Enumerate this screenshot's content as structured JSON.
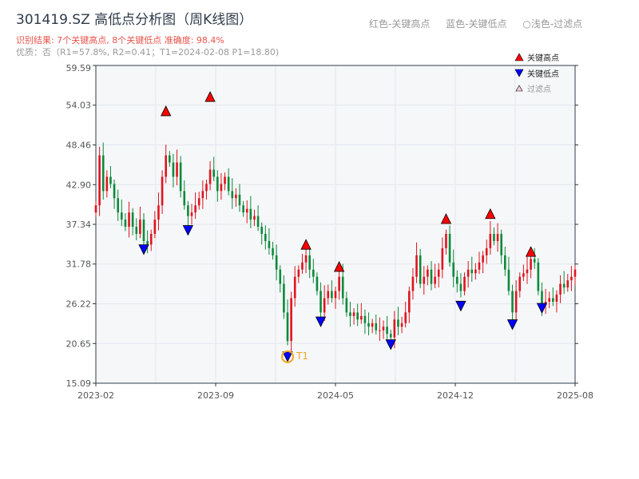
{
  "title": "301419.SZ 高低点分析图（周K线图）",
  "subtitle": "识别结果: 7个关键高点, 8个关键低点  准确度: 98.4%",
  "quality": "优质：否（R1=57.8%, R2=0.41；T1=2024-02-08 P1=18.80)",
  "top_legend": [
    "红色-关键高点",
    "蓝色-关键低点",
    "○浅色-过滤点"
  ],
  "colors": {
    "up": "#e0141e",
    "down": "#0c8a3a",
    "high_marker": "#ff0000",
    "low_marker": "#0000ff",
    "t1": "#f5a623",
    "grid": "#e3e7ec",
    "plot_bg": "#f5f7f9"
  },
  "chart_data": {
    "type": "candlestick",
    "title": "301419.SZ 高低点分析图（周K线图）",
    "ylim": [
      15.09,
      59.59
    ],
    "yticks": [
      "15.09",
      "20.65",
      "26.22",
      "31.78",
      "37.34",
      "42.90",
      "48.46",
      "54.03",
      "59.59"
    ],
    "xticks": [
      "2023-02",
      "2023-09",
      "2024-05",
      "2024-12",
      "2025-08"
    ],
    "grid": true,
    "legend": {
      "placement": "top-right",
      "items": [
        "关键高点",
        "关键低点",
        "过滤点"
      ]
    },
    "weekly_close": [
      40,
      47,
      42,
      44,
      43,
      41,
      39,
      38,
      37,
      39,
      37,
      36,
      38,
      35,
      34.5,
      36,
      38,
      40,
      44,
      47,
      46,
      44,
      46,
      42,
      40,
      38.5,
      39,
      40,
      41,
      42,
      43,
      45,
      44,
      42,
      43,
      44,
      42,
      41,
      41.5,
      40,
      39,
      39.5,
      38,
      38.5,
      37,
      36,
      35,
      34,
      33,
      31,
      29,
      25,
      21,
      27,
      30,
      31,
      32,
      33,
      31,
      30,
      28,
      25,
      27,
      28,
      27,
      28,
      30,
      27,
      25,
      24.5,
      25,
      24,
      24.5,
      23.5,
      23,
      23.5,
      22.5,
      22.5,
      23,
      22,
      21.5,
      24,
      23,
      23.5,
      25,
      28,
      30,
      33,
      29,
      30,
      31,
      29,
      30,
      31,
      34,
      36,
      32,
      30,
      29,
      28,
      30,
      31,
      30.5,
      31,
      32,
      33,
      34,
      36,
      35,
      36,
      33,
      31,
      28,
      25,
      28,
      30,
      30.5,
      31,
      32.5,
      32,
      28,
      26,
      26.5,
      27,
      26.5,
      27.5,
      29,
      28.5,
      29.5,
      30,
      31
    ],
    "key_highs": [
      {
        "week": 19,
        "price": 53.0
      },
      {
        "week": 31,
        "price": 55.0
      },
      {
        "week": 57,
        "price": 34.3
      },
      {
        "week": 66,
        "price": 31.2
      },
      {
        "week": 95,
        "price": 37.9
      },
      {
        "week": 107,
        "price": 38.6
      },
      {
        "week": 118,
        "price": 33.3
      }
    ],
    "key_lows": [
      {
        "week": 13,
        "price": 33.8
      },
      {
        "week": 25,
        "price": 36.5
      },
      {
        "week": 52,
        "price": 18.8,
        "label": "T1"
      },
      {
        "week": 61,
        "price": 23.7
      },
      {
        "week": 80,
        "price": 20.5
      },
      {
        "week": 99,
        "price": 25.9
      },
      {
        "week": 113,
        "price": 23.3
      },
      {
        "week": 121,
        "price": 25.6
      }
    ]
  }
}
